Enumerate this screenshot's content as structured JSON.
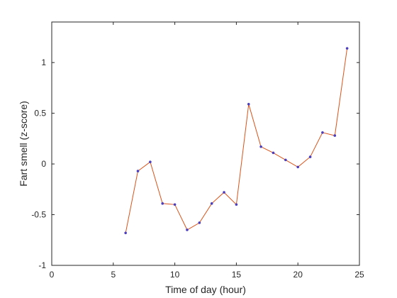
{
  "chart_data": {
    "type": "line",
    "xlabel": "Time of day (hour)",
    "ylabel": "Fart smell (z-score)",
    "xlim": [
      0,
      25
    ],
    "ylim": [
      -1,
      1.4
    ],
    "xticks": [
      0,
      5,
      10,
      15,
      20,
      25
    ],
    "yticks": [
      -1,
      -0.5,
      0,
      0.5,
      1
    ],
    "ytick_labels": [
      "-1",
      "-0.5",
      "0",
      "0.5",
      "1"
    ],
    "grid": false,
    "series": [
      {
        "line_color": "#d95319",
        "marker_color": "#4b3fbf",
        "x": [
          6,
          7,
          8,
          9,
          10,
          11,
          12,
          13,
          14,
          15,
          16,
          17,
          18,
          19,
          20,
          21,
          22,
          23,
          24
        ],
        "y": [
          -0.68,
          -0.07,
          0.02,
          -0.39,
          -0.4,
          -0.65,
          -0.58,
          -0.39,
          -0.28,
          -0.4,
          0.59,
          0.17,
          0.11,
          0.04,
          -0.03,
          0.07,
          0.31,
          0.28,
          1.14
        ]
      }
    ]
  }
}
